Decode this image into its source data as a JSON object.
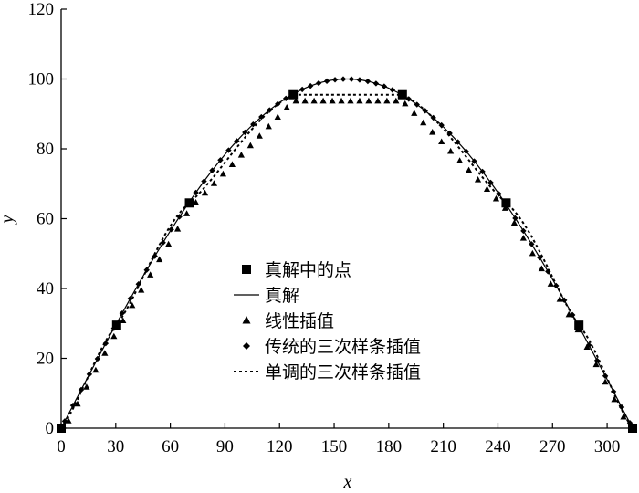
{
  "chart_data": {
    "type": "line",
    "title": "",
    "xlabel": "x",
    "ylabel": "y",
    "xlim": [
      0,
      314
    ],
    "ylim": [
      0,
      120
    ],
    "x_ticks": [
      0,
      30,
      60,
      90,
      120,
      150,
      180,
      210,
      240,
      270,
      300
    ],
    "y_ticks": [
      0,
      20,
      40,
      60,
      80,
      100,
      120
    ],
    "grid": false,
    "legend_position": "center",
    "series": [
      {
        "name": "真解中的点",
        "style": "square-markers",
        "x": [
          0,
          30.5,
          70.5,
          127.5,
          187.5,
          244.5,
          284.5,
          314
        ],
        "y": [
          0,
          29.5,
          64.5,
          95.5,
          95.5,
          64.5,
          29.5,
          0
        ]
      },
      {
        "name": "真解",
        "style": "solid-line",
        "function": "100*sin(pi*x/314)",
        "x_range": [
          0,
          314
        ]
      },
      {
        "name": "线性插值",
        "style": "triangle-markers",
        "x": [
          0,
          30.5,
          70.5,
          127.5,
          187.5,
          244.5,
          284.5,
          314
        ],
        "y": [
          0,
          29.5,
          64.5,
          95.5,
          95.5,
          64.5,
          29.5,
          0
        ]
      },
      {
        "name": "传统的三次样条插值",
        "style": "diamond-markers",
        "function": "approx. 100*sin(pi*x/314)",
        "x_range": [
          0,
          314
        ]
      },
      {
        "name": "单调的三次样条插值",
        "style": "dashed-line",
        "x": [
          0,
          30.5,
          70.5,
          127.5,
          187.5,
          244.5,
          284.5,
          314
        ],
        "y": [
          0,
          29.5,
          64.5,
          95.5,
          95.5,
          64.5,
          29.5,
          0
        ]
      }
    ]
  }
}
